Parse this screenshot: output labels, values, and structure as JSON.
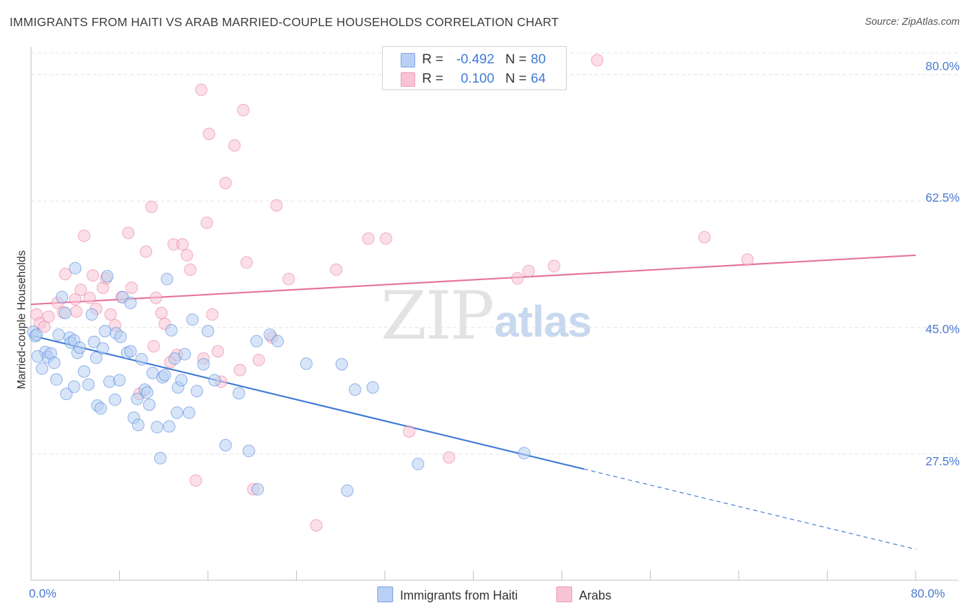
{
  "title": "IMMIGRANTS FROM HAITI VS ARAB MARRIED-COUPLE HOUSEHOLDS CORRELATION CHART",
  "source": "Source: ZipAtlas.com",
  "watermark": {
    "zip": "ZIP",
    "atlas": "atlas"
  },
  "colors": {
    "blue": "#3f7bd6",
    "blue_fill": "#b8d0f3",
    "pink": "#e8729a",
    "pink_fill": "#f8c3d3",
    "grid": "#e3e3e3"
  },
  "legend": {
    "rows": [
      {
        "r_label": "R =",
        "r_value": "-0.492",
        "n_label": "N =",
        "n_value": "80"
      },
      {
        "r_label": "R =",
        "r_value": "0.100",
        "n_label": "N =",
        "n_value": "64"
      }
    ]
  },
  "bottom_legend": [
    "Immigrants from Haiti",
    "Arabs"
  ],
  "chart_data": {
    "type": "scatter",
    "title": "IMMIGRANTS FROM HAITI VS ARAB MARRIED-COUPLE HOUSEHOLDS CORRELATION CHART",
    "xlabel": "",
    "ylabel": "Married-couple Households",
    "xlim": [
      0,
      80
    ],
    "ylim": [
      10,
      83
    ],
    "x_tick_labels": [
      "0.0%",
      "80.0%"
    ],
    "y_ticks": [
      27.5,
      45.0,
      62.5,
      80.0
    ],
    "y_tick_labels": [
      "27.5%",
      "45.0%",
      "62.5%",
      "80.0%"
    ],
    "series": [
      {
        "name": "Immigrants from Haiti",
        "r": -0.492,
        "n": 80,
        "trend": {
          "x0": 0,
          "y0": 43.9,
          "x1": 50,
          "y1": 25.4,
          "dash_to_x": 80,
          "dash_to_y": 14.3
        },
        "points": [
          [
            0.2,
            44.4
          ],
          [
            0.4,
            43.8
          ],
          [
            0.5,
            44.0
          ],
          [
            1.0,
            39.3
          ],
          [
            1.3,
            41.6
          ],
          [
            1.5,
            40.9
          ],
          [
            1.8,
            41.4
          ],
          [
            2.1,
            40.1
          ],
          [
            2.3,
            37.8
          ],
          [
            2.5,
            44.0
          ],
          [
            2.8,
            49.2
          ],
          [
            3.1,
            47.0
          ],
          [
            3.2,
            35.8
          ],
          [
            3.5,
            43.6
          ],
          [
            3.6,
            42.9
          ],
          [
            3.9,
            43.2
          ],
          [
            4.0,
            53.2
          ],
          [
            4.2,
            41.5
          ],
          [
            4.4,
            42.2
          ],
          [
            4.8,
            38.9
          ],
          [
            5.5,
            46.8
          ],
          [
            5.7,
            43.0
          ],
          [
            5.9,
            40.8
          ],
          [
            6.0,
            34.2
          ],
          [
            6.3,
            33.8
          ],
          [
            6.5,
            42.1
          ],
          [
            6.7,
            44.5
          ],
          [
            6.9,
            52.1
          ],
          [
            7.1,
            37.5
          ],
          [
            7.6,
            35.0
          ],
          [
            7.7,
            44.2
          ],
          [
            8.0,
            37.7
          ],
          [
            8.1,
            43.7
          ],
          [
            8.3,
            49.2
          ],
          [
            8.7,
            41.5
          ],
          [
            9.0,
            48.4
          ],
          [
            9.3,
            32.5
          ],
          [
            9.6,
            35.1
          ],
          [
            9.7,
            31.5
          ],
          [
            10.0,
            40.6
          ],
          [
            10.3,
            36.4
          ],
          [
            10.5,
            36.0
          ],
          [
            10.7,
            34.3
          ],
          [
            11.0,
            38.7
          ],
          [
            11.4,
            31.2
          ],
          [
            11.7,
            26.9
          ],
          [
            11.9,
            38.1
          ],
          [
            12.1,
            38.4
          ],
          [
            12.3,
            51.7
          ],
          [
            12.5,
            31.3
          ],
          [
            12.7,
            44.6
          ],
          [
            13.0,
            40.7
          ],
          [
            13.3,
            36.7
          ],
          [
            13.6,
            37.7
          ],
          [
            13.9,
            41.3
          ],
          [
            14.3,
            33.2
          ],
          [
            14.6,
            46.1
          ],
          [
            15.0,
            36.2
          ],
          [
            15.6,
            39.9
          ],
          [
            16.0,
            44.5
          ],
          [
            16.6,
            37.7
          ],
          [
            17.6,
            28.7
          ],
          [
            18.8,
            35.9
          ],
          [
            19.7,
            27.9
          ],
          [
            20.4,
            43.1
          ],
          [
            21.6,
            44.0
          ],
          [
            22.3,
            43.1
          ],
          [
            24.9,
            40.0
          ],
          [
            28.1,
            39.9
          ],
          [
            28.6,
            22.4
          ],
          [
            29.3,
            36.4
          ],
          [
            30.9,
            36.7
          ],
          [
            35.0,
            26.1
          ],
          [
            44.6,
            27.6
          ],
          [
            0.6,
            41.0
          ],
          [
            3.9,
            36.8
          ],
          [
            13.2,
            33.2
          ],
          [
            5.2,
            37.1
          ],
          [
            9.0,
            41.7
          ],
          [
            20.5,
            22.6
          ]
        ]
      },
      {
        "name": "Arabs",
        "r": 0.1,
        "n": 64,
        "trend": {
          "x0": 0,
          "y0": 48.2,
          "x1": 80,
          "y1": 55.0
        },
        "points": [
          [
            0.5,
            46.8
          ],
          [
            0.8,
            45.6
          ],
          [
            1.2,
            45.1
          ],
          [
            1.6,
            46.5
          ],
          [
            2.4,
            48.4
          ],
          [
            2.9,
            47.1
          ],
          [
            3.1,
            52.4
          ],
          [
            4.0,
            48.9
          ],
          [
            4.5,
            50.2
          ],
          [
            4.8,
            57.7
          ],
          [
            5.3,
            49.1
          ],
          [
            5.6,
            52.2
          ],
          [
            5.9,
            47.6
          ],
          [
            6.5,
            50.5
          ],
          [
            6.8,
            51.8
          ],
          [
            7.2,
            46.8
          ],
          [
            7.6,
            45.3
          ],
          [
            8.2,
            49.2
          ],
          [
            8.8,
            58.1
          ],
          [
            9.1,
            50.5
          ],
          [
            9.8,
            35.8
          ],
          [
            10.4,
            55.5
          ],
          [
            10.9,
            61.7
          ],
          [
            11.1,
            42.4
          ],
          [
            11.3,
            49.1
          ],
          [
            11.8,
            47.0
          ],
          [
            12.1,
            45.5
          ],
          [
            12.6,
            40.2
          ],
          [
            12.9,
            56.5
          ],
          [
            13.2,
            41.2
          ],
          [
            13.7,
            56.5
          ],
          [
            14.1,
            55.0
          ],
          [
            14.4,
            53.0
          ],
          [
            14.9,
            23.8
          ],
          [
            15.4,
            77.9
          ],
          [
            15.6,
            40.7
          ],
          [
            15.9,
            59.5
          ],
          [
            16.1,
            71.8
          ],
          [
            16.4,
            46.8
          ],
          [
            16.9,
            41.7
          ],
          [
            17.2,
            37.5
          ],
          [
            17.6,
            65.0
          ],
          [
            18.4,
            70.2
          ],
          [
            18.9,
            39.1
          ],
          [
            19.2,
            75.1
          ],
          [
            19.5,
            54.0
          ],
          [
            20.1,
            22.6
          ],
          [
            20.6,
            40.5
          ],
          [
            21.8,
            43.6
          ],
          [
            22.2,
            61.9
          ],
          [
            23.3,
            51.7
          ],
          [
            25.8,
            17.6
          ],
          [
            27.6,
            53.0
          ],
          [
            30.5,
            57.3
          ],
          [
            32.1,
            57.3
          ],
          [
            34.2,
            30.6
          ],
          [
            37.8,
            27.0
          ],
          [
            44.0,
            51.8
          ],
          [
            45.0,
            52.8
          ],
          [
            47.3,
            53.5
          ],
          [
            51.2,
            82.0
          ],
          [
            60.9,
            57.5
          ],
          [
            64.8,
            54.4
          ],
          [
            4.1,
            47.2
          ]
        ]
      }
    ]
  }
}
